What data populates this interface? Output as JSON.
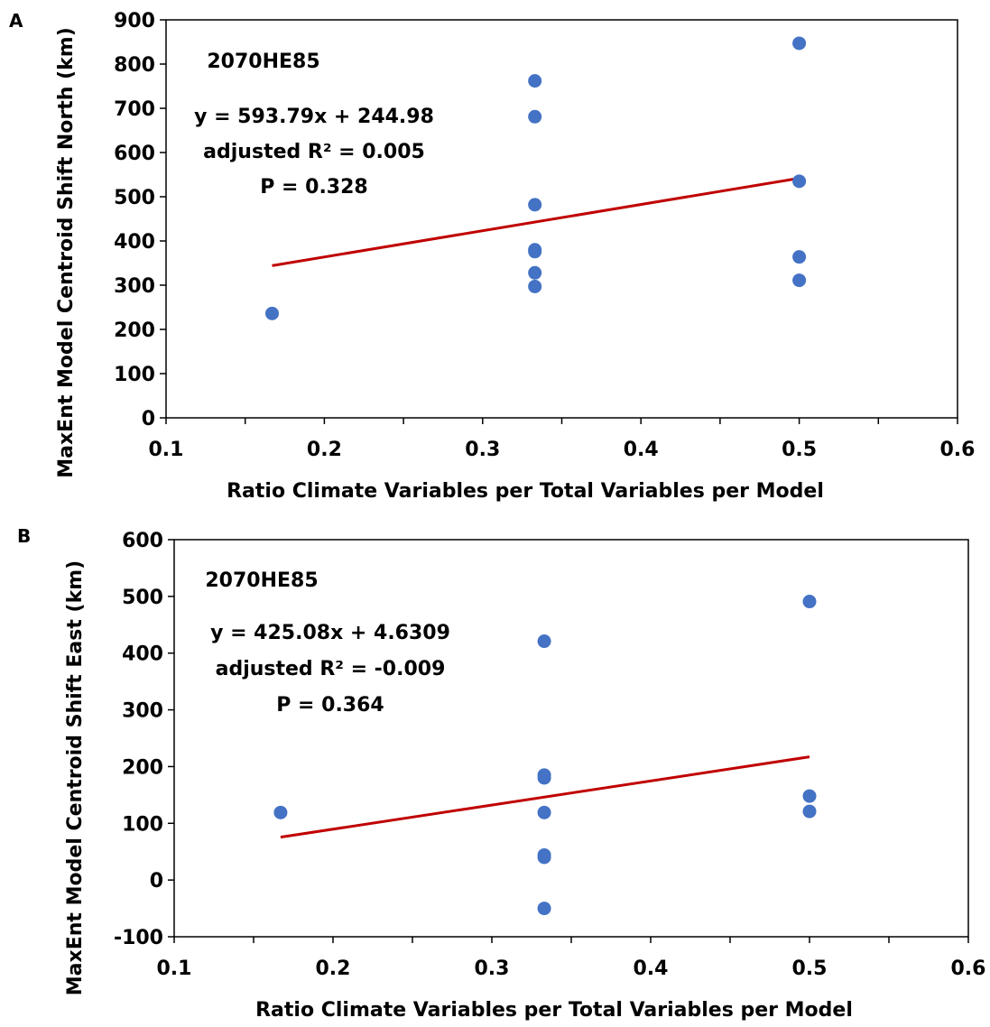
{
  "panels": [
    {
      "panel_label": "A",
      "annotations": [
        "2070HE85",
        "y = 593.79x + 244.98",
        "adjusted R² = 0.005",
        "P = 0.328"
      ]
    },
    {
      "panel_label": "B",
      "annotations": [
        "2070HE85",
        "y = 425.08x + 4.6309",
        "adjusted R² = -0.009",
        "P = 0.364"
      ]
    }
  ],
  "colors": {
    "points": "#4472C4",
    "trendline": "#C00000",
    "axis": "#000000"
  },
  "chart_data": [
    {
      "type": "scatter",
      "xlabel": "Ratio Climate Variables per Total Variables per Model",
      "ylabel": "MaxEnt Model Centroid Shift North (km)",
      "xlim": [
        0.1,
        0.6
      ],
      "ylim": [
        0,
        900
      ],
      "xticks": [
        0.1,
        0.2,
        0.3,
        0.4,
        0.5,
        0.6
      ],
      "xtick_labels": [
        "0.1",
        "0.2",
        "0.3",
        "0.4",
        "0.5",
        "0.6"
      ],
      "yticks": [
        0,
        100,
        200,
        300,
        400,
        500,
        600,
        700,
        800,
        900
      ],
      "ytick_labels": [
        "0",
        "100",
        "200",
        "300",
        "400",
        "500",
        "600",
        "700",
        "800",
        "900"
      ],
      "grid": false,
      "points": [
        {
          "x": 0.167,
          "y": 236
        },
        {
          "x": 0.333,
          "y": 762
        },
        {
          "x": 0.333,
          "y": 681
        },
        {
          "x": 0.333,
          "y": 482
        },
        {
          "x": 0.333,
          "y": 380
        },
        {
          "x": 0.333,
          "y": 376
        },
        {
          "x": 0.333,
          "y": 328
        },
        {
          "x": 0.333,
          "y": 297
        },
        {
          "x": 0.5,
          "y": 847
        },
        {
          "x": 0.5,
          "y": 535
        },
        {
          "x": 0.5,
          "y": 364
        },
        {
          "x": 0.5,
          "y": 311
        }
      ],
      "trendline": {
        "slope": 593.79,
        "intercept": 244.98,
        "x_range": [
          0.167,
          0.5
        ]
      }
    },
    {
      "type": "scatter",
      "xlabel": "Ratio Climate Variables per Total Variables per Model",
      "ylabel": "MaxEnt Model Centroid Shift East (km)",
      "xlim": [
        0.1,
        0.6
      ],
      "ylim": [
        -100,
        600
      ],
      "xticks": [
        0.1,
        0.2,
        0.3,
        0.4,
        0.5,
        0.6
      ],
      "xtick_labels": [
        "0.1",
        "0.2",
        "0.3",
        "0.4",
        "0.5",
        "0.6"
      ],
      "yticks": [
        -100,
        0,
        100,
        200,
        300,
        400,
        500,
        600
      ],
      "ytick_labels": [
        "-100",
        "0",
        "100",
        "200",
        "300",
        "400",
        "500",
        "600"
      ],
      "grid": false,
      "points": [
        {
          "x": 0.167,
          "y": 119
        },
        {
          "x": 0.333,
          "y": 421
        },
        {
          "x": 0.333,
          "y": 185
        },
        {
          "x": 0.333,
          "y": 180
        },
        {
          "x": 0.333,
          "y": 119
        },
        {
          "x": 0.333,
          "y": 44
        },
        {
          "x": 0.333,
          "y": 40
        },
        {
          "x": 0.333,
          "y": -50
        },
        {
          "x": 0.5,
          "y": 491
        },
        {
          "x": 0.5,
          "y": 148
        },
        {
          "x": 0.5,
          "y": 121
        }
      ],
      "trendline": {
        "slope": 425.08,
        "intercept": 4.6309,
        "x_range": [
          0.167,
          0.5
        ]
      }
    }
  ]
}
